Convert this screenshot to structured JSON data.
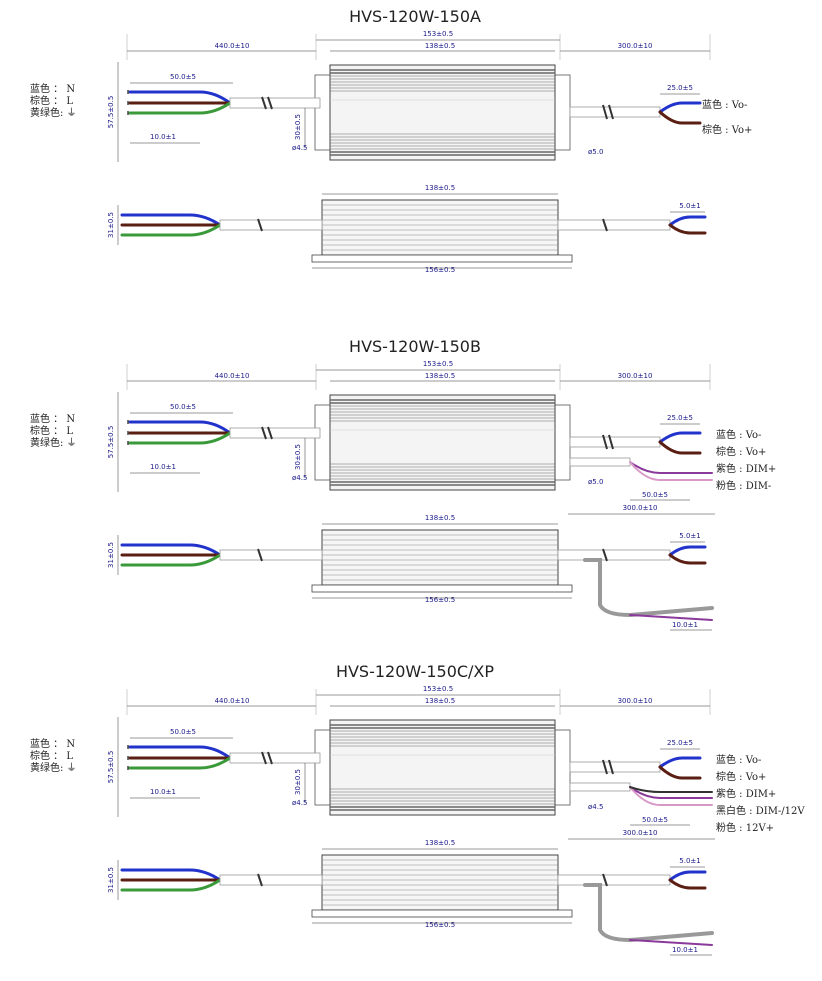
{
  "sections": [
    {
      "title": "HVS-120W-150A",
      "top_view": {
        "dims": {
          "overall_length": "153±0.5",
          "body_length": "138±0.5",
          "input_cable": "440.0±10",
          "output_cable": "300.0±10",
          "input_strip": "50.0±5",
          "output_strip": "25.0±5",
          "wire_strip": "10.0±1",
          "width": "57.5±0.5",
          "mount_width": "30±0.5",
          "hole_left": "ø4.5",
          "hole_right": "ø5.0"
        },
        "input_labels": [
          "蓝色 ： N",
          "棕色 ： L",
          "黄绿色: ⏚"
        ],
        "output_labels": [
          "蓝色 : Vo-",
          "棕色 : Vo+"
        ]
      },
      "side_view": {
        "dims": {
          "body_length": "138±0.5",
          "base_length": "156±0.5",
          "height": "31±0.5",
          "output_strip": "5.0±1"
        }
      }
    },
    {
      "title": "HVS-120W-150B",
      "top_view": {
        "dims": {
          "overall_length": "153±0.5",
          "body_length": "138±0.5",
          "input_cable": "440.0±10",
          "output_cable": "300.0±10",
          "input_strip": "50.0±5",
          "output_strip": "25.0±5",
          "wire_strip": "10.0±1",
          "width": "57.5±0.5",
          "mount_width": "30±0.5",
          "hole_left": "ø4.5",
          "hole_right": "ø5.0",
          "dim_strip": "50.0±5",
          "dim_cable": "300.0±10"
        },
        "input_labels": [
          "蓝色 ： N",
          "棕色 ： L",
          "黄绿色: ⏚"
        ],
        "output_labels": [
          "蓝色 : Vo-",
          "棕色 : Vo+",
          "紫色 : DIM+",
          "粉色 : DIM-"
        ]
      },
      "side_view": {
        "dims": {
          "body_length": "138±0.5",
          "base_length": "156±0.5",
          "height": "31±0.5",
          "output_strip": "5.0±1",
          "dim_wire_strip": "10.0±1"
        }
      }
    },
    {
      "title": "HVS-120W-150C/XP",
      "top_view": {
        "dims": {
          "overall_length": "153±0.5",
          "body_length": "138±0.5",
          "input_cable": "440.0±10",
          "output_cable": "300.0±10",
          "input_strip": "50.0±5",
          "output_strip": "25.0±5",
          "wire_strip": "10.0±1",
          "width": "57.5±0.5",
          "mount_width": "30±0.5",
          "hole_left": "ø4.5",
          "hole_right": "ø4.5",
          "dim_strip": "50.0±5",
          "dim_cable": "300.0±10"
        },
        "input_labels": [
          "蓝色 ： N",
          "棕色 ： L",
          "黄绿色: ⏚"
        ],
        "output_labels": [
          "蓝色 : Vo-",
          "棕色 : Vo+",
          "紫色 : DIM+",
          "黑白色 : DIM-/12V",
          "粉色 : 12V+"
        ]
      },
      "side_view": {
        "dims": {
          "body_length": "138±0.5",
          "base_length": "156±0.5",
          "height": "31±0.5",
          "output_strip": "5.0±1",
          "dim_wire_strip": "10.0±1"
        }
      }
    }
  ]
}
